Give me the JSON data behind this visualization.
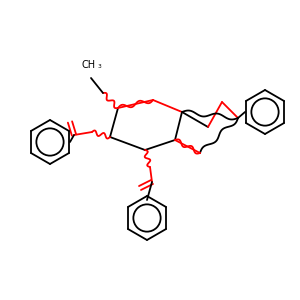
{
  "bg_color": "#ffffff",
  "bond_color": "#000000",
  "oxygen_color": "#ff0000",
  "figsize": [
    3.0,
    3.0
  ],
  "dpi": 100,
  "scale": 300
}
